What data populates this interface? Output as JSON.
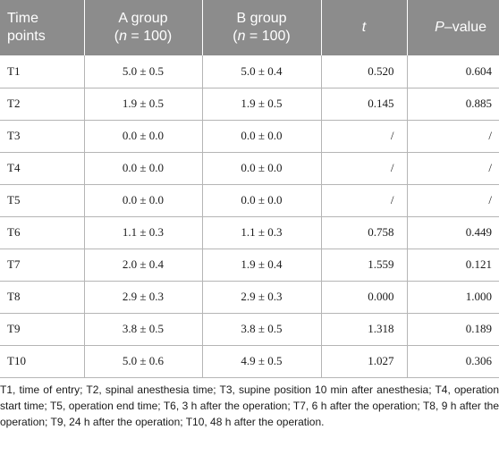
{
  "table": {
    "header": {
      "time_line1": "Time",
      "time_line2": "points",
      "a_line1": "A group",
      "a_n_var": "n",
      "a_n_rest": " = 100)",
      "b_line1": "B group",
      "b_n_var": "n",
      "b_n_rest": " = 100)",
      "t_label": "t",
      "p_var": "P",
      "p_rest": "–value",
      "open_paren": "("
    },
    "rows": [
      {
        "time": "T1",
        "a": "5.0 ± 0.5",
        "b": "5.0 ± 0.4",
        "t": "0.520",
        "p": "0.604"
      },
      {
        "time": "T2",
        "a": "1.9 ± 0.5",
        "b": "1.9 ± 0.5",
        "t": "0.145",
        "p": "0.885"
      },
      {
        "time": "T3",
        "a": "0.0 ± 0.0",
        "b": "0.0 ± 0.0",
        "t": "/",
        "p": "/"
      },
      {
        "time": "T4",
        "a": "0.0 ± 0.0",
        "b": "0.0 ± 0.0",
        "t": "/",
        "p": "/"
      },
      {
        "time": "T5",
        "a": "0.0 ± 0.0",
        "b": "0.0 ± 0.0",
        "t": "/",
        "p": "/"
      },
      {
        "time": "T6",
        "a": "1.1 ± 0.3",
        "b": "1.1 ± 0.3",
        "t": "0.758",
        "p": "0.449"
      },
      {
        "time": "T7",
        "a": "2.0 ± 0.4",
        "b": "1.9 ± 0.4",
        "t": "1.559",
        "p": "0.121"
      },
      {
        "time": "T8",
        "a": "2.9 ± 0.3",
        "b": "2.9 ± 0.3",
        "t": "0.000",
        "p": "1.000"
      },
      {
        "time": "T9",
        "a": "3.8 ± 0.5",
        "b": "3.8 ± 0.5",
        "t": "1.318",
        "p": "0.189"
      },
      {
        "time": "T10",
        "a": "5.0 ± 0.6",
        "b": "4.9 ± 0.5",
        "t": "1.027",
        "p": "0.306"
      }
    ]
  },
  "footnote": "T1, time of entry; T2, spinal anesthesia time; T3, supine position 10 min after anesthesia; T4, operation start time; T5, operation end time; T6, 3 h after the operation; T7, 6 h after the operation; T8, 9 h after the operation; T9, 24 h after the operation; T10, 48 h after the operation.",
  "colors": {
    "header_bg": "#8c8c8c",
    "header_text": "#ffffff",
    "grid_line": "#b5b5b5"
  }
}
